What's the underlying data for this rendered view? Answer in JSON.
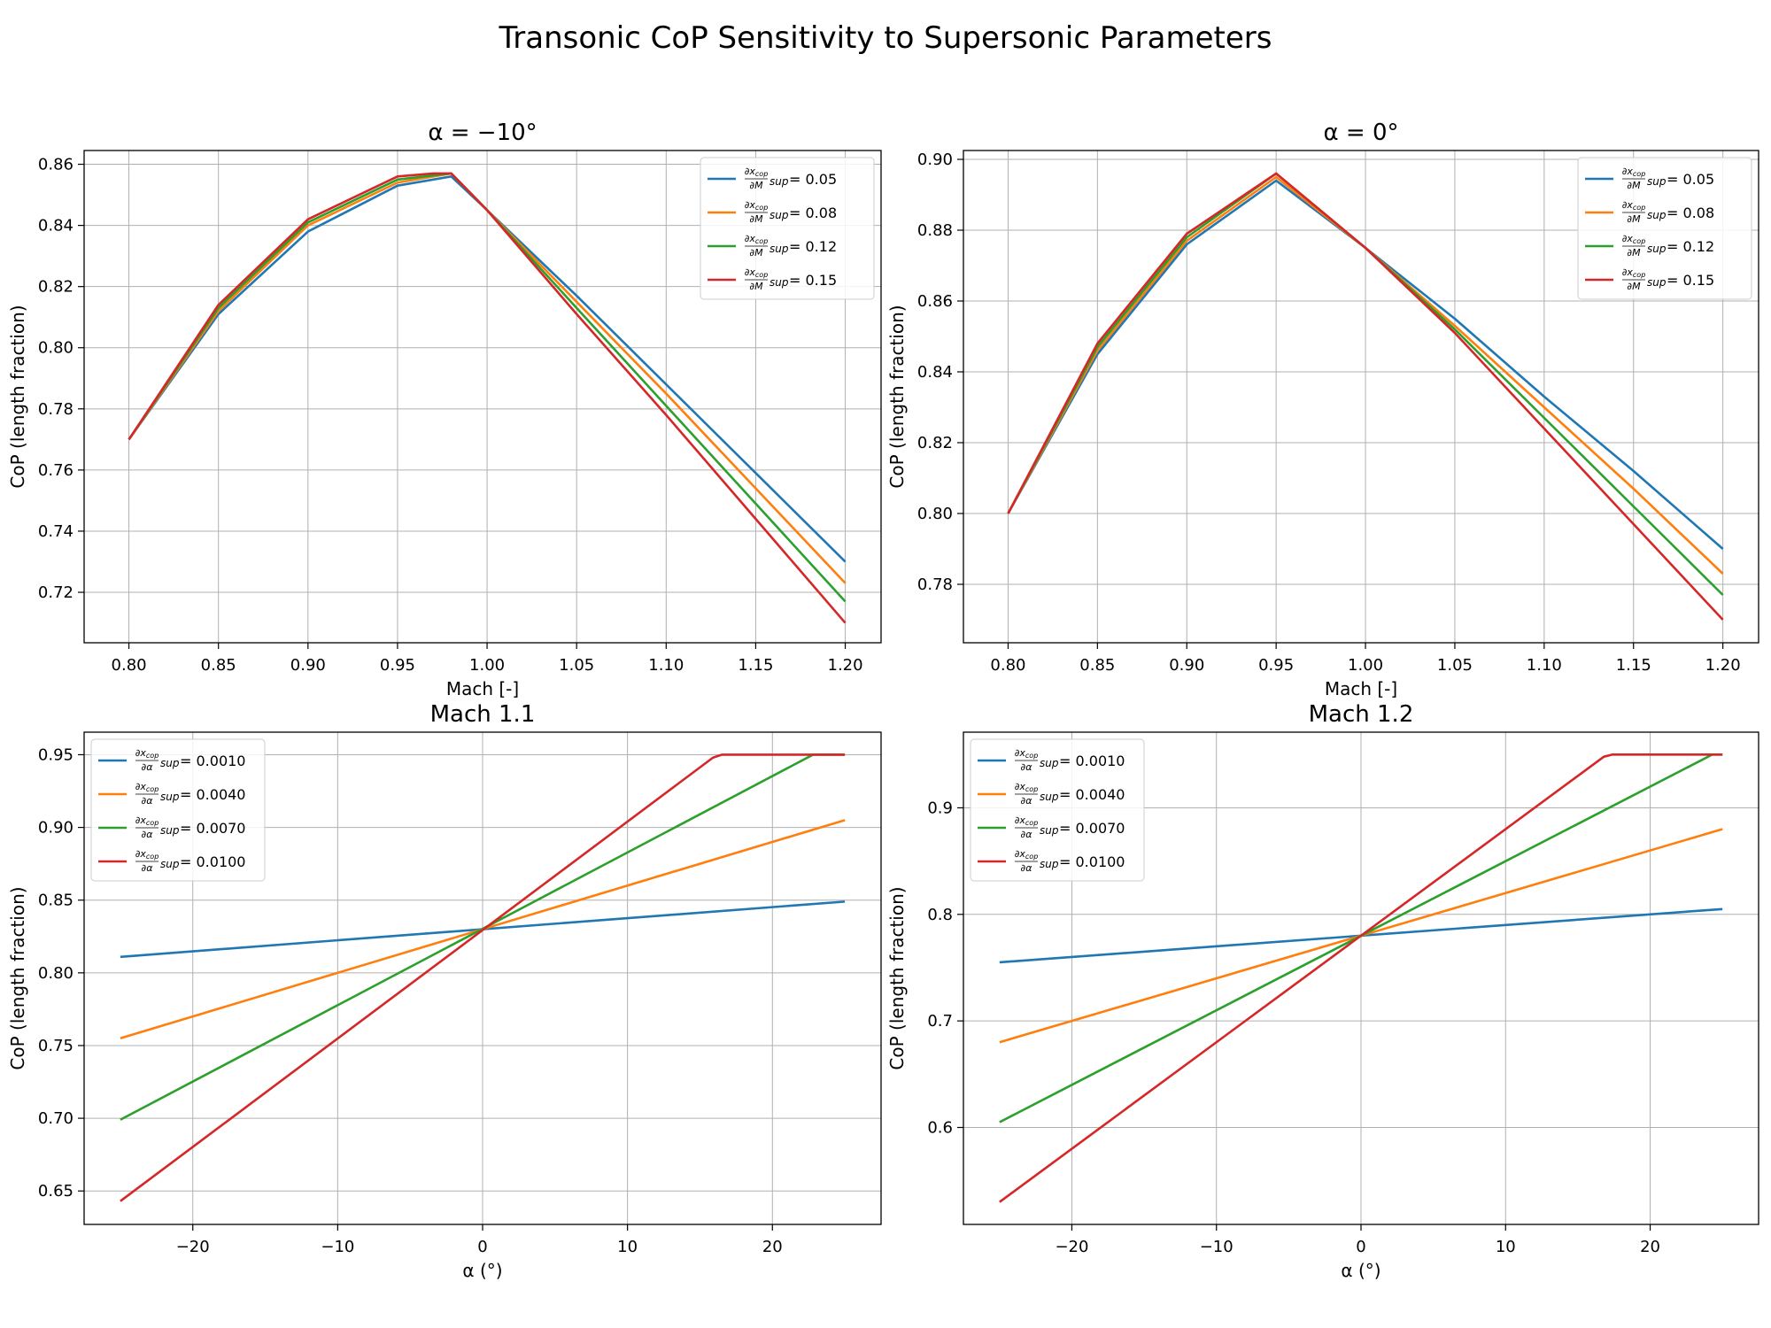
{
  "figure": {
    "title": "Transonic CoP Sensitivity to Supersonic Parameters"
  },
  "colors": {
    "c1": "#1f77b4",
    "c2": "#ff7f0e",
    "c3": "#2ca02c",
    "c4": "#d62728",
    "grid": "#b0b0b0"
  },
  "chart_data": [
    {
      "type": "line",
      "title": "α = −10°",
      "xlabel": "Mach [-]",
      "ylabel": "CoP (length fraction)",
      "xlim": [
        0.775,
        1.22
      ],
      "ylim": [
        0.7035,
        0.8645
      ],
      "xticks": [
        0.8,
        0.85,
        0.9,
        0.95,
        1.0,
        1.05,
        1.1,
        1.15,
        1.2
      ],
      "xtick_labels": [
        "0.80",
        "0.85",
        "0.90",
        "0.95",
        "1.00",
        "1.05",
        "1.10",
        "1.15",
        "1.20"
      ],
      "yticks": [
        0.72,
        0.74,
        0.76,
        0.78,
        0.8,
        0.82,
        0.84,
        0.86
      ],
      "ytick_labels": [
        "0.72",
        "0.74",
        "0.76",
        "0.78",
        "0.80",
        "0.82",
        "0.84",
        "0.86"
      ],
      "legend": {
        "position": "top-right",
        "numerator": "∂x",
        "numerator_sub": "cop",
        "denominator": "∂M",
        "subscript": "sup"
      },
      "grid": true,
      "series": [
        {
          "name": "0.05",
          "x": [
            0.8,
            0.85,
            0.9,
            0.95,
            0.98,
            1.0,
            1.05,
            1.1,
            1.15,
            1.2
          ],
          "y": [
            0.77,
            0.811,
            0.838,
            0.853,
            0.856,
            0.845,
            0.817,
            0.788,
            0.759,
            0.73
          ]
        },
        {
          "name": "0.08",
          "x": [
            0.8,
            0.85,
            0.9,
            0.95,
            0.98,
            1.0,
            1.05,
            1.1,
            1.15,
            1.2
          ],
          "y": [
            0.77,
            0.812,
            0.84,
            0.854,
            0.857,
            0.845,
            0.815,
            0.785,
            0.754,
            0.723
          ]
        },
        {
          "name": "0.12",
          "x": [
            0.8,
            0.85,
            0.9,
            0.95,
            0.98,
            1.0,
            1.05,
            1.1,
            1.15,
            1.2
          ],
          "y": [
            0.77,
            0.813,
            0.841,
            0.855,
            0.857,
            0.845,
            0.813,
            0.781,
            0.749,
            0.717
          ]
        },
        {
          "name": "0.15",
          "x": [
            0.8,
            0.85,
            0.9,
            0.95,
            0.97,
            0.98,
            1.0,
            1.05,
            1.1,
            1.15,
            1.2
          ],
          "y": [
            0.77,
            0.814,
            0.842,
            0.856,
            0.857,
            0.857,
            0.845,
            0.811,
            0.778,
            0.744,
            0.71
          ]
        }
      ]
    },
    {
      "type": "line",
      "title": "α = 0°",
      "xlabel": "Mach [-]",
      "ylabel": "CoP (length fraction)",
      "xlim": [
        0.775,
        1.22
      ],
      "ylim": [
        0.7635,
        0.9025
      ],
      "xticks": [
        0.8,
        0.85,
        0.9,
        0.95,
        1.0,
        1.05,
        1.1,
        1.15,
        1.2
      ],
      "xtick_labels": [
        "0.80",
        "0.85",
        "0.90",
        "0.95",
        "1.00",
        "1.05",
        "1.10",
        "1.15",
        "1.20"
      ],
      "yticks": [
        0.78,
        0.8,
        0.82,
        0.84,
        0.86,
        0.88,
        0.9
      ],
      "ytick_labels": [
        "0.78",
        "0.80",
        "0.82",
        "0.84",
        "0.86",
        "0.88",
        "0.90"
      ],
      "legend": {
        "position": "top-right",
        "numerator": "∂x",
        "numerator_sub": "cop",
        "denominator": "∂M",
        "subscript": "sup"
      },
      "grid": true,
      "series": [
        {
          "name": "0.05",
          "x": [
            0.8,
            0.85,
            0.9,
            0.95,
            1.0,
            1.05,
            1.1,
            1.15,
            1.2
          ],
          "y": [
            0.8,
            0.845,
            0.876,
            0.894,
            0.875,
            0.855,
            0.833,
            0.812,
            0.79
          ]
        },
        {
          "name": "0.08",
          "x": [
            0.8,
            0.85,
            0.9,
            0.95,
            1.0,
            1.05,
            1.1,
            1.15,
            1.2
          ],
          "y": [
            0.8,
            0.846,
            0.877,
            0.895,
            0.875,
            0.853,
            0.83,
            0.807,
            0.783
          ]
        },
        {
          "name": "0.12",
          "x": [
            0.8,
            0.85,
            0.9,
            0.95,
            1.0,
            1.05,
            1.1,
            1.15,
            1.2
          ],
          "y": [
            0.8,
            0.847,
            0.878,
            0.896,
            0.875,
            0.852,
            0.827,
            0.802,
            0.777
          ]
        },
        {
          "name": "0.15",
          "x": [
            0.8,
            0.85,
            0.9,
            0.95,
            1.0,
            1.05,
            1.1,
            1.15,
            1.2
          ],
          "y": [
            0.8,
            0.848,
            0.879,
            0.896,
            0.875,
            0.851,
            0.824,
            0.797,
            0.77
          ]
        }
      ]
    },
    {
      "type": "line",
      "title": "Mach 1.1",
      "xlabel": "α (°)",
      "ylabel": "CoP (length fraction)",
      "xlim": [
        -27.5,
        27.5
      ],
      "ylim": [
        0.627,
        0.9655
      ],
      "xticks": [
        -20,
        -10,
        0,
        10,
        20
      ],
      "xtick_labels": [
        "−20",
        "−10",
        "0",
        "10",
        "20"
      ],
      "yticks": [
        0.65,
        0.7,
        0.75,
        0.8,
        0.85,
        0.9,
        0.95
      ],
      "ytick_labels": [
        "0.65",
        "0.70",
        "0.75",
        "0.80",
        "0.85",
        "0.90",
        "0.95"
      ],
      "legend": {
        "position": "top-left",
        "numerator": "∂x",
        "numerator_sub": "cop",
        "denominator": "∂α",
        "subscript": "sup"
      },
      "grid": true,
      "series": [
        {
          "name": "0.0010",
          "x": [
            -25,
            25
          ],
          "y": [
            0.811,
            0.849
          ]
        },
        {
          "name": "0.0040",
          "x": [
            -25,
            25
          ],
          "y": [
            0.755,
            0.905
          ]
        },
        {
          "name": "0.0070",
          "x": [
            -25,
            22.8,
            25
          ],
          "y": [
            0.699,
            0.95,
            0.95
          ]
        },
        {
          "name": "0.0100",
          "x": [
            -25,
            15.9,
            16.5,
            25
          ],
          "y": [
            0.643,
            0.948,
            0.95,
            0.95
          ]
        }
      ]
    },
    {
      "type": "line",
      "title": "Mach 1.2",
      "xlabel": "α (°)",
      "ylabel": "CoP (length fraction)",
      "xlim": [
        -27.5,
        27.5
      ],
      "ylim": [
        0.509,
        0.971
      ],
      "xticks": [
        -20,
        -10,
        0,
        10,
        20
      ],
      "xtick_labels": [
        "−20",
        "−10",
        "0",
        "10",
        "20"
      ],
      "yticks": [
        0.6,
        0.7,
        0.8,
        0.9
      ],
      "ytick_labels": [
        "0.6",
        "0.7",
        "0.8",
        "0.9"
      ],
      "legend": {
        "position": "top-left",
        "numerator": "∂x",
        "numerator_sub": "cop",
        "denominator": "∂α",
        "subscript": "sup"
      },
      "grid": true,
      "series": [
        {
          "name": "0.0010",
          "x": [
            -25,
            25
          ],
          "y": [
            0.755,
            0.805
          ]
        },
        {
          "name": "0.0040",
          "x": [
            -25,
            25
          ],
          "y": [
            0.68,
            0.88
          ]
        },
        {
          "name": "0.0070",
          "x": [
            -25,
            24.3,
            25
          ],
          "y": [
            0.605,
            0.95,
            0.95
          ]
        },
        {
          "name": "0.0100",
          "x": [
            -25,
            16.8,
            17.4,
            25
          ],
          "y": [
            0.53,
            0.948,
            0.95,
            0.95
          ]
        }
      ]
    }
  ]
}
